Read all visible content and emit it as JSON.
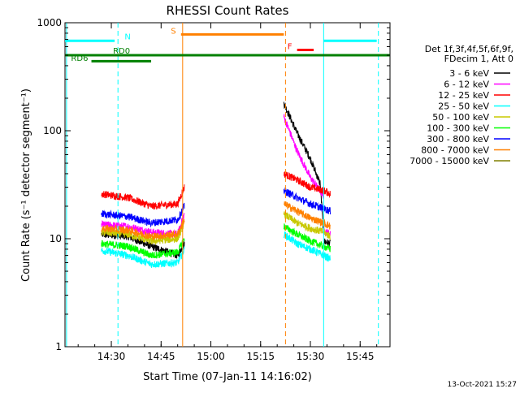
{
  "chart_data": {
    "type": "line",
    "title": "RHESSI Count Rates",
    "xlabel": "Start Time (07-Jan-11 14:16:02)",
    "ylabel": "Count Rate (s⁻¹ detector segment⁻¹)",
    "y_scale": "log",
    "ylim": [
      1,
      1000
    ],
    "xlim": [
      "14:16:02",
      "15:54:00"
    ],
    "x_ticks": [
      "14:30",
      "14:45",
      "15:00",
      "15:15",
      "15:30",
      "15:45"
    ],
    "y_ticks": [
      "1",
      "10",
      "100",
      "1000"
    ],
    "grid": false,
    "legend_position": "right",
    "legend_header": [
      "Det 1f,3f,4f,5f,6f,9f,",
      "FDecim 1, Att 0"
    ],
    "series": [
      {
        "name": "3 - 6 keV",
        "color": "#000000",
        "segments": [
          {
            "x": [
              "14:27",
              "14:35",
              "14:42",
              "14:50",
              "14:52"
            ],
            "y": [
              11,
              10.5,
              8.5,
              7,
              9
            ]
          },
          {
            "x": [
              "15:22",
              "15:26",
              "15:30",
              "15:33",
              "15:34"
            ],
            "y": [
              180,
              95,
              55,
              32,
              11
            ]
          },
          {
            "x": [
              "15:34",
              "15:36"
            ],
            "y": [
              9.5,
              9
            ]
          }
        ]
      },
      {
        "name": "6 - 12 keV",
        "color": "#ff00ff",
        "segments": [
          {
            "x": [
              "14:27",
              "14:35",
              "14:42",
              "14:50",
              "14:52"
            ],
            "y": [
              13.5,
              13,
              11.5,
              11,
              17
            ]
          },
          {
            "x": [
              "15:22",
              "15:26",
              "15:30",
              "15:34"
            ],
            "y": [
              135,
              65,
              37,
              25
            ]
          },
          {
            "x": [
              "15:34",
              "15:36"
            ],
            "y": [
              12,
              11
            ]
          }
        ]
      },
      {
        "name": "12 - 25 keV",
        "color": "#ff0000",
        "segments": [
          {
            "x": [
              "14:27",
              "14:35",
              "14:42",
              "14:50",
              "14:52"
            ],
            "y": [
              26,
              24,
              20,
              21,
              30
            ]
          },
          {
            "x": [
              "15:22",
              "15:26",
              "15:30",
              "15:34",
              "15:36"
            ],
            "y": [
              40,
              35,
              30,
              28,
              26
            ]
          }
        ]
      },
      {
        "name": "25 - 50 keV",
        "color": "#00ffff",
        "segments": [
          {
            "x": [
              "14:27",
              "14:35",
              "14:42",
              "14:50",
              "14:52"
            ],
            "y": [
              7.8,
              7,
              5.8,
              6,
              8
            ]
          },
          {
            "x": [
              "15:22",
              "15:26",
              "15:30",
              "15:34",
              "15:36"
            ],
            "y": [
              11,
              9,
              8,
              7,
              6.5
            ]
          }
        ]
      },
      {
        "name": "50 - 100 keV",
        "color": "#c8c800",
        "segments": [
          {
            "x": [
              "14:27",
              "14:35",
              "14:42",
              "14:50",
              "14:52"
            ],
            "y": [
              11.5,
              11,
              9.5,
              10,
              14
            ]
          },
          {
            "x": [
              "15:22",
              "15:26",
              "15:30",
              "15:34",
              "15:36"
            ],
            "y": [
              17,
              14,
              12.5,
              11.5,
              10.5
            ]
          }
        ]
      },
      {
        "name": "100 - 300 keV",
        "color": "#00ff00",
        "segments": [
          {
            "x": [
              "14:27",
              "14:35",
              "14:42",
              "14:50",
              "14:52"
            ],
            "y": [
              9,
              8.5,
              7,
              7.5,
              10
            ]
          },
          {
            "x": [
              "15:22",
              "15:26",
              "15:30",
              "15:34",
              "15:36"
            ],
            "y": [
              13,
              11,
              9.5,
              8.5,
              8
            ]
          }
        ]
      },
      {
        "name": "300 - 800 keV",
        "color": "#0000ff",
        "segments": [
          {
            "x": [
              "14:27",
              "14:35",
              "14:42",
              "14:50",
              "14:52"
            ],
            "y": [
              17,
              16,
              14,
              15,
              20
            ]
          },
          {
            "x": [
              "15:22",
              "15:26",
              "15:30",
              "15:34",
              "15:36"
            ],
            "y": [
              28,
              24,
              21,
              19,
              18
            ]
          }
        ]
      },
      {
        "name": "800 - 7000 keV",
        "color": "#ff8000",
        "segments": [
          {
            "x": [
              "14:27",
              "14:35",
              "14:42",
              "14:50",
              "14:52"
            ],
            "y": [
              12.5,
              12,
              10.5,
              11,
              15
            ]
          },
          {
            "x": [
              "15:22",
              "15:26",
              "15:30",
              "15:34",
              "15:36"
            ],
            "y": [
              21,
              18,
              15.5,
              14,
              13
            ]
          }
        ]
      },
      {
        "name": "7000 - 15000 keV",
        "color": "#808000",
        "segments": []
      }
    ],
    "annotations": {
      "vertical_lines": [
        {
          "x": "14:16:30",
          "color": "#00ffff",
          "style": "solid"
        },
        {
          "x": "14:32",
          "color": "#00ffff",
          "style": "dashed"
        },
        {
          "x": "14:51:30",
          "color": "#ff8000",
          "style": "solid"
        },
        {
          "x": "15:22:30",
          "color": "#ff8000",
          "style": "dashed"
        },
        {
          "x": "15:34:00",
          "color": "#00ffff",
          "style": "solid"
        },
        {
          "x": "15:50:30",
          "color": "#00ffff",
          "style": "dashed"
        }
      ],
      "flag_bars": [
        {
          "label": "N",
          "color": "#00ffff",
          "x": [
            "14:16:00",
            "14:31:00"
          ],
          "y": 680,
          "label_x": "14:34:00",
          "label_y": 700,
          "label_anchor": "start"
        },
        {
          "label": "",
          "color": "#00ffff",
          "x": [
            "15:34:00",
            "15:50:00"
          ],
          "y": 680
        },
        {
          "label": "S",
          "color": "#ff8000",
          "x": [
            "14:51:00",
            "15:22:00"
          ],
          "y": 780,
          "label_x": "14:49:30",
          "label_y": 790,
          "label_anchor": "end"
        },
        {
          "label": "F",
          "color": "#ff0000",
          "x": [
            "15:26:00",
            "15:31:00"
          ],
          "y": 560,
          "label_x": "15:24:30",
          "label_y": 570,
          "label_anchor": "end"
        },
        {
          "label": "RD0",
          "color": "#008000",
          "x": [
            "14:16:00",
            "15:54:00"
          ],
          "y": 500,
          "label_x": "14:30:30",
          "label_y": 520,
          "label_anchor": "start"
        },
        {
          "label": "RD6",
          "color": "#008000",
          "x": [
            "14:24:00",
            "14:42:00"
          ],
          "y": 440,
          "label_x": "14:23:00",
          "label_y": 445,
          "label_anchor": "end"
        }
      ]
    },
    "footer_timestamp": "13-Oct-2021 15:27"
  }
}
